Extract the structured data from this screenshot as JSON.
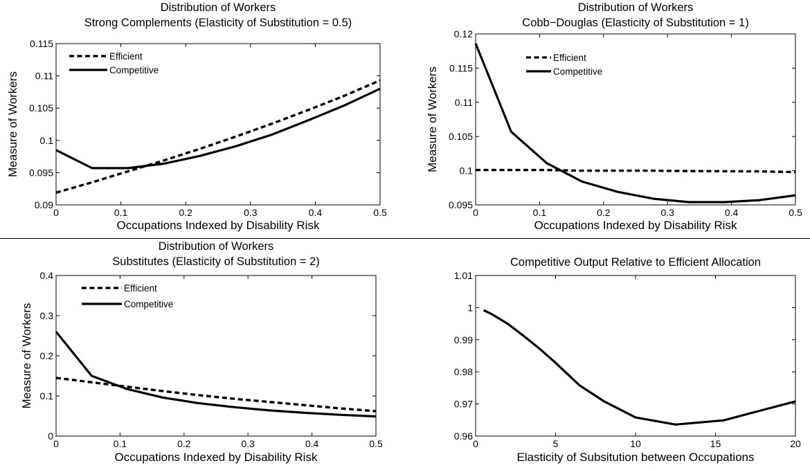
{
  "chart_data": [
    {
      "type": "line",
      "title": "Distribution of Workers",
      "subtitle": "Strong Complements (Elasticity of Substitution = 0.5)",
      "xlabel": "Occupations Indexed by Disability Risk",
      "ylabel": "Measure of Workers",
      "xlim": [
        0,
        0.5
      ],
      "ylim": [
        0.09,
        0.115
      ],
      "xticks": [
        0,
        0.1,
        0.2,
        0.3,
        0.4,
        0.5
      ],
      "yticks": [
        0.09,
        0.095,
        0.1,
        0.105,
        0.11,
        0.115
      ],
      "xtick_labels": [
        "0",
        "0.1",
        "0.2",
        "0.3",
        "0.4",
        "0.5"
      ],
      "ytick_labels": [
        "0.09",
        "0.095",
        "0.1",
        "0.105",
        "0.11",
        "0.115"
      ],
      "grid": false,
      "legend_position": "top-left",
      "series": [
        {
          "name": "Efficient",
          "style": "dashed",
          "x": [
            0,
            0.0556,
            0.1111,
            0.1667,
            0.2222,
            0.2778,
            0.3333,
            0.3889,
            0.4444,
            0.5
          ],
          "y": [
            0.0919,
            0.0935,
            0.0952,
            0.0969,
            0.0987,
            0.1006,
            0.1026,
            0.1047,
            0.1069,
            0.1093
          ]
        },
        {
          "name": "Competitive",
          "style": "solid",
          "x": [
            0,
            0.0556,
            0.1111,
            0.1667,
            0.2222,
            0.2778,
            0.3333,
            0.3889,
            0.4444,
            0.5
          ],
          "y": [
            0.0985,
            0.0957,
            0.0957,
            0.0964,
            0.0976,
            0.0991,
            0.1009,
            0.1031,
            0.1054,
            0.108
          ]
        }
      ]
    },
    {
      "type": "line",
      "title": "Distribution of Workers",
      "subtitle": "Cobb−Douglas (Elasticity of Substitution = 1)",
      "xlabel": "Occupations Indexed by Disability Risk",
      "ylabel": "Measure of Workers",
      "xlim": [
        0,
        0.5
      ],
      "ylim": [
        0.095,
        0.12
      ],
      "xticks": [
        0,
        0.1,
        0.2,
        0.3,
        0.4,
        0.5
      ],
      "yticks": [
        0.095,
        0.1,
        0.105,
        0.11,
        0.115,
        0.12
      ],
      "xtick_labels": [
        "0",
        "0.1",
        "0.2",
        "0.3",
        "0.4",
        "0.5"
      ],
      "ytick_labels": [
        "0.095",
        "0.1",
        "0.105",
        "0.11",
        "0.115",
        "0.12"
      ],
      "grid": false,
      "legend_position": "top-left",
      "series": [
        {
          "name": "Efficient",
          "style": "dashed",
          "x": [
            0,
            0.0556,
            0.1111,
            0.1667,
            0.2222,
            0.2778,
            0.3333,
            0.3889,
            0.4444,
            0.5
          ],
          "y": [
            0.1001,
            0.1001,
            0.1001,
            0.1,
            0.1,
            0.1,
            0.09995,
            0.09992,
            0.0999,
            0.0998
          ]
        },
        {
          "name": "Competitive",
          "style": "solid",
          "x": [
            0,
            0.0556,
            0.1111,
            0.1667,
            0.2222,
            0.2778,
            0.3333,
            0.3889,
            0.4444,
            0.5
          ],
          "y": [
            0.1186,
            0.1057,
            0.1011,
            0.0984,
            0.0969,
            0.0959,
            0.0954,
            0.0954,
            0.0957,
            0.0964
          ]
        }
      ]
    },
    {
      "type": "line",
      "title": "Distribution of Workers",
      "subtitle": "Substitutes (Elasticity of Substitution = 2)",
      "xlabel": "Occupations Indexed by Disability Risk",
      "ylabel": "Measure of Workers",
      "xlim": [
        0,
        0.5
      ],
      "ylim": [
        0,
        0.4
      ],
      "xticks": [
        0,
        0.1,
        0.2,
        0.3,
        0.4,
        0.5
      ],
      "yticks": [
        0,
        0.1,
        0.2,
        0.3,
        0.4
      ],
      "xtick_labels": [
        "0",
        "0.1",
        "0.2",
        "0.3",
        "0.4",
        "0.5"
      ],
      "ytick_labels": [
        "0",
        "0.1",
        "0.2",
        "0.3",
        "0.4"
      ],
      "grid": false,
      "legend_position": "top-left",
      "series": [
        {
          "name": "Efficient",
          "style": "dashed",
          "x": [
            0,
            0.0556,
            0.1111,
            0.1667,
            0.2222,
            0.2778,
            0.3333,
            0.3889,
            0.4444,
            0.5
          ],
          "y": [
            0.145,
            0.134,
            0.123,
            0.112,
            0.102,
            0.093,
            0.085,
            0.077,
            0.069,
            0.062
          ]
        },
        {
          "name": "Competitive",
          "style": "solid",
          "x": [
            0,
            0.0556,
            0.1111,
            0.1667,
            0.2222,
            0.2778,
            0.3333,
            0.3889,
            0.4444,
            0.5
          ],
          "y": [
            0.26,
            0.15,
            0.117,
            0.096,
            0.082,
            0.072,
            0.064,
            0.058,
            0.053,
            0.049
          ]
        }
      ]
    },
    {
      "type": "line",
      "title": "Competitive Output Relative to Efficient Allocation",
      "xlabel": "Elasticity of Subsitution between Occupations",
      "ylabel": "",
      "xlim": [
        0,
        20
      ],
      "ylim": [
        0.96,
        1.01
      ],
      "xticks": [
        0,
        5,
        10,
        15,
        20
      ],
      "yticks": [
        0.96,
        0.97,
        0.98,
        0.99,
        1,
        1.01
      ],
      "xtick_labels": [
        "0",
        "5",
        "10",
        "15",
        "20"
      ],
      "ytick_labels": [
        "0.96",
        "0.97",
        "0.98",
        "0.99",
        "1",
        "1.01"
      ],
      "grid": false,
      "series": [
        {
          "name": "",
          "style": "solid",
          "x": [
            0.5,
            1,
            2,
            3,
            4,
            5,
            6.5,
            8,
            10,
            12.5,
            15.5,
            18,
            20
          ],
          "y": [
            0.9992,
            0.998,
            0.995,
            0.9912,
            0.9872,
            0.9828,
            0.9758,
            0.9709,
            0.9658,
            0.9636,
            0.9649,
            0.9682,
            0.9708
          ]
        }
      ]
    }
  ]
}
